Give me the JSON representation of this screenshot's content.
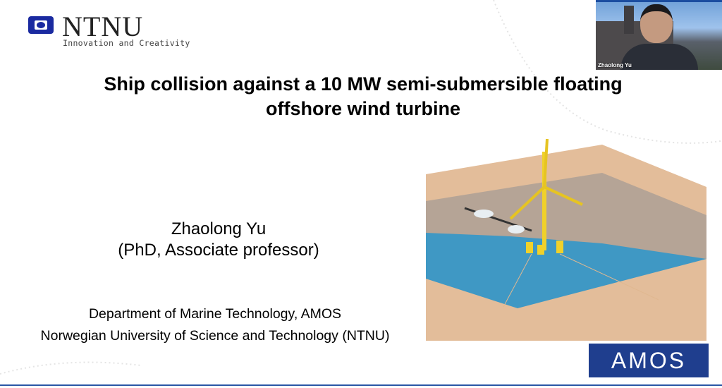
{
  "logo": {
    "wordmark": "NTNU",
    "tagline": "Innovation and Creativity",
    "color": "#1a2aa0"
  },
  "slide": {
    "title_line1": "Ship collision against a 10 MW semi-submersible floating",
    "title_line2": "offshore wind turbine",
    "presenter_name": "Zhaolong Yu",
    "presenter_role": "(PhD, Associate professor)",
    "department": "Department of Marine Technology, AMOS",
    "university": "Norwegian University of Science and Technology (NTNU)"
  },
  "amos_logo": {
    "text": "AMOS",
    "color": "#1f3e8e"
  },
  "video": {
    "participant_name": "Zhaolong Yu"
  },
  "colors": {
    "sea": "#3f98c4",
    "ground": "#e3bd9a",
    "turbine": "#f0d12a"
  }
}
